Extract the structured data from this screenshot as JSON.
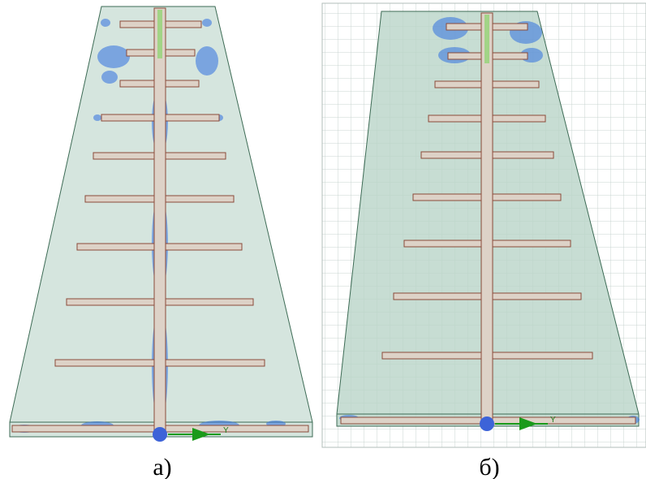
{
  "panels": [
    {
      "label": "а)",
      "axis_label": "Y"
    },
    {
      "label": "б)",
      "axis_label": "Y"
    }
  ]
}
